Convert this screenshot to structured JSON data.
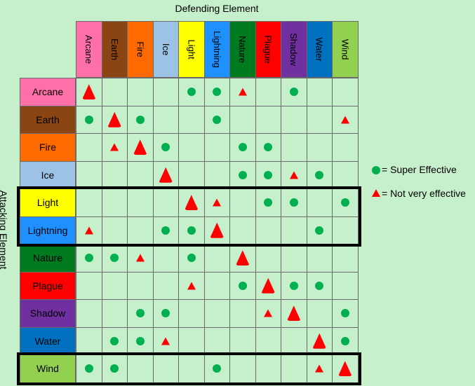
{
  "titles": {
    "defending": "Defending Element",
    "attacking": "Attacking Element"
  },
  "elements": [
    {
      "name": "Arcane",
      "color": "#ff6fa8"
    },
    {
      "name": "Earth",
      "color": "#8b4513"
    },
    {
      "name": "Fire",
      "color": "#ff6a00"
    },
    {
      "name": "Ice",
      "color": "#9cc3e6"
    },
    {
      "name": "Light",
      "color": "#ffff00"
    },
    {
      "name": "Lightning",
      "color": "#1e90ff"
    },
    {
      "name": "Nature",
      "color": "#007a1f"
    },
    {
      "name": "Plague",
      "color": "#ff0000"
    },
    {
      "name": "Shadow",
      "color": "#7030a0"
    },
    {
      "name": "Water",
      "color": "#0070c0"
    },
    {
      "name": "Wind",
      "color": "#92d050"
    }
  ],
  "effectiveness": {
    "Arcane": [
      "T",
      "",
      "",
      "",
      "C",
      "C",
      "t",
      "",
      "C",
      "",
      ""
    ],
    "Earth": [
      "C",
      "T",
      "C",
      "",
      "",
      "C",
      "",
      "",
      "",
      "",
      "t"
    ],
    "Fire": [
      "",
      "t",
      "T",
      "C",
      "",
      "",
      "C",
      "C",
      "",
      "",
      ""
    ],
    "Ice": [
      "",
      "",
      "",
      "T",
      "",
      "",
      "C",
      "C",
      "t",
      "C",
      ""
    ],
    "Light": [
      "",
      "",
      "",
      "",
      "T",
      "t",
      "",
      "C",
      "C",
      "",
      "C"
    ],
    "Lightning": [
      "t",
      "",
      "",
      "C",
      "C",
      "T",
      "",
      "",
      "",
      "C",
      ""
    ],
    "Nature": [
      "C",
      "C",
      "t",
      "",
      "C",
      "",
      "T",
      "",
      "",
      "",
      ""
    ],
    "Plague": [
      "",
      "",
      "",
      "",
      "t",
      "",
      "C",
      "T",
      "C",
      "C",
      ""
    ],
    "Shadow": [
      "",
      "",
      "C",
      "C",
      "",
      "",
      "",
      "t",
      "T",
      "",
      "C"
    ],
    "Water": [
      "",
      "C",
      "C",
      "t",
      "",
      "",
      "",
      "",
      "",
      "T",
      "C"
    ],
    "Wind": [
      "C",
      "C",
      "",
      "",
      "",
      "C",
      "",
      "",
      "",
      "t",
      "T"
    ]
  },
  "legend": {
    "super_effective": "= Super Effective",
    "not_very_effective": "= Not very effective"
  }
}
